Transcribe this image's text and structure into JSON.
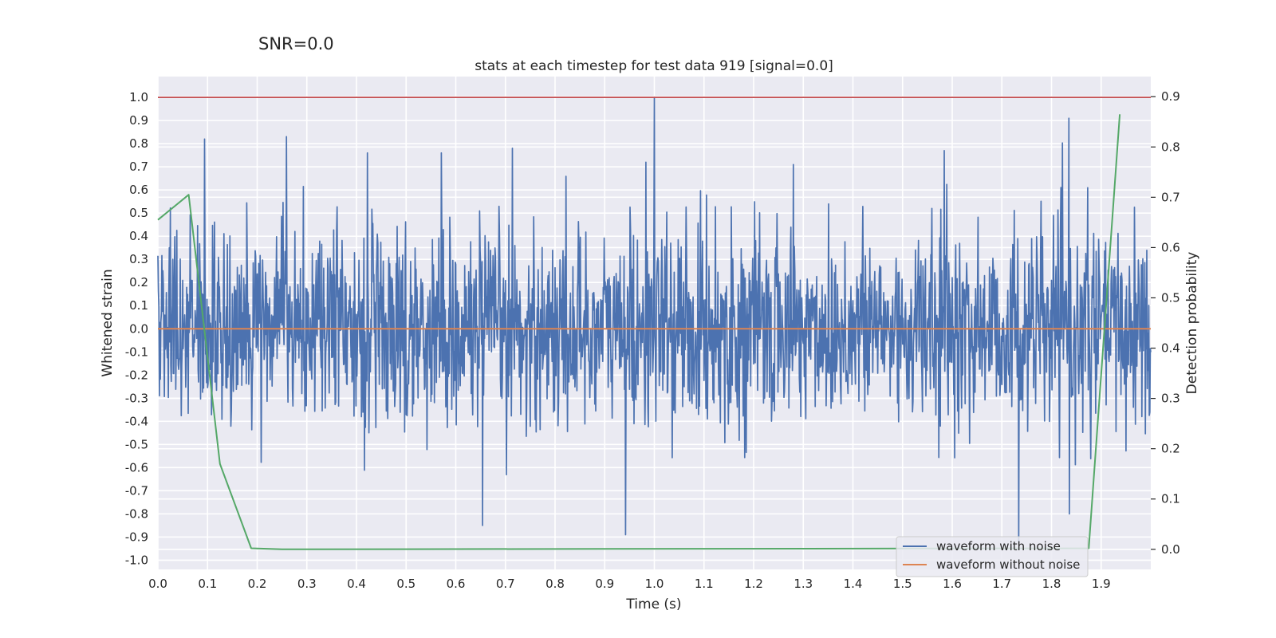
{
  "figure": {
    "snr_label": "SNR=0.0"
  },
  "chart_data": {
    "type": "line",
    "title": "stats at each timestep for test data 919 [signal=0.0]",
    "xlabel": "Time (s)",
    "ylabel": "Whitened strain",
    "y2label": "Detection probability",
    "xlim": [
      0.0,
      2.0
    ],
    "ylim": [
      -1.04,
      1.09
    ],
    "y2lim": [
      -0.04,
      0.94
    ],
    "x_ticks": [
      "0.0",
      "0.1",
      "0.2",
      "0.3",
      "0.4",
      "0.5",
      "0.6",
      "0.7",
      "0.8",
      "0.9",
      "1.0",
      "1.1",
      "1.2",
      "1.3",
      "1.4",
      "1.5",
      "1.6",
      "1.7",
      "1.8",
      "1.9"
    ],
    "y_ticks": [
      "-1.0",
      "-0.9",
      "-0.8",
      "-0.7",
      "-0.6",
      "-0.5",
      "-0.4",
      "-0.3",
      "-0.2",
      "-0.1",
      "0.0",
      "0.1",
      "0.2",
      "0.3",
      "0.4",
      "0.5",
      "0.6",
      "0.7",
      "0.8",
      "0.9",
      "1.0"
    ],
    "y2_ticks": [
      "0.0",
      "0.1",
      "0.2",
      "0.3",
      "0.4",
      "0.5",
      "0.6",
      "0.7",
      "0.8",
      "0.9"
    ],
    "grid": true,
    "legend_position": "bottom-right",
    "colors": {
      "waveform_with_noise": "#4c72b0",
      "waveform_without_noise": "#dd8452",
      "detection_probability": "#55a868",
      "threshold": "#c44e52",
      "background": "#eaeaf2",
      "grid": "#ffffff"
    },
    "series": [
      {
        "name": "waveform with noise",
        "axis": "left",
        "kind": "noise",
        "x_range": [
          0.0,
          2.0
        ],
        "amplitude_range": [
          -0.92,
          1.0
        ],
        "peaks": [
          {
            "x": 0.094,
            "y": 0.82
          },
          {
            "x": 0.259,
            "y": 0.83
          },
          {
            "x": 0.422,
            "y": 0.76
          },
          {
            "x": 0.571,
            "y": 0.76
          },
          {
            "x": 0.714,
            "y": 0.78
          },
          {
            "x": 0.653,
            "y": -0.85
          },
          {
            "x": 0.941,
            "y": -0.89
          },
          {
            "x": 0.983,
            "y": 0.72
          },
          {
            "x": 1.0,
            "y": 1.0
          },
          {
            "x": 1.28,
            "y": 0.71
          },
          {
            "x": 1.584,
            "y": 0.77
          },
          {
            "x": 1.733,
            "y": -0.92
          },
          {
            "x": 1.835,
            "y": 0.91
          },
          {
            "x": 1.835,
            "y": -0.8
          }
        ]
      },
      {
        "name": "waveform without noise",
        "axis": "left",
        "x": [
          0.0,
          2.0
        ],
        "y": [
          0.0,
          0.0
        ]
      },
      {
        "axis": "right",
        "x": [
          0.0,
          0.062,
          0.125,
          0.188,
          0.25,
          1.875,
          1.9375
        ],
        "y": [
          0.655,
          0.705,
          0.17,
          0.002,
          0.0,
          0.002,
          0.865
        ]
      },
      {
        "axis": "left",
        "x": [
          0.0,
          2.0
        ],
        "y": [
          1.0,
          1.0
        ]
      }
    ]
  }
}
